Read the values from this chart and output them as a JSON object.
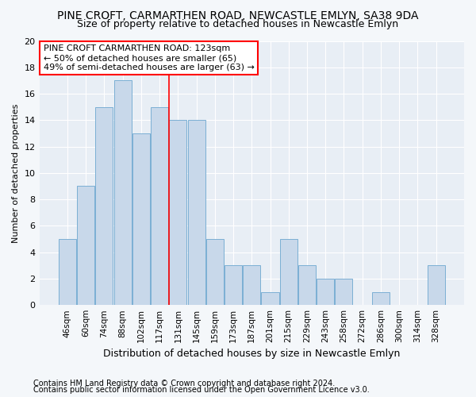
{
  "title": "PINE CROFT, CARMARTHEN ROAD, NEWCASTLE EMLYN, SA38 9DA",
  "subtitle": "Size of property relative to detached houses in Newcastle Emlyn",
  "xlabel": "Distribution of detached houses by size in Newcastle Emlyn",
  "ylabel": "Number of detached properties",
  "footer1": "Contains HM Land Registry data © Crown copyright and database right 2024.",
  "footer2": "Contains public sector information licensed under the Open Government Licence v3.0.",
  "categories": [
    "46sqm",
    "60sqm",
    "74sqm",
    "88sqm",
    "102sqm",
    "117sqm",
    "131sqm",
    "145sqm",
    "159sqm",
    "173sqm",
    "187sqm",
    "201sqm",
    "215sqm",
    "229sqm",
    "243sqm",
    "258sqm",
    "272sqm",
    "286sqm",
    "300sqm",
    "314sqm",
    "328sqm"
  ],
  "values": [
    5,
    9,
    15,
    17,
    13,
    15,
    14,
    14,
    5,
    3,
    3,
    1,
    5,
    3,
    2,
    2,
    0,
    1,
    0,
    0,
    3
  ],
  "bar_color": "#c8d8ea",
  "bar_edge_color": "#7bafd4",
  "red_line_index": 6,
  "annotation_text1": "PINE CROFT CARMARTHEN ROAD: 123sqm",
  "annotation_text2": "← 50% of detached houses are smaller (65)",
  "annotation_text3": "49% of semi-detached houses are larger (63) →",
  "ylim": [
    0,
    20
  ],
  "yticks": [
    0,
    2,
    4,
    6,
    8,
    10,
    12,
    14,
    16,
    18,
    20
  ],
  "background_color": "#f4f7fa",
  "plot_bg_color": "#e8eef5",
  "grid_color": "#ffffff",
  "title_fontsize": 10,
  "subtitle_fontsize": 9,
  "footer_fontsize": 7
}
